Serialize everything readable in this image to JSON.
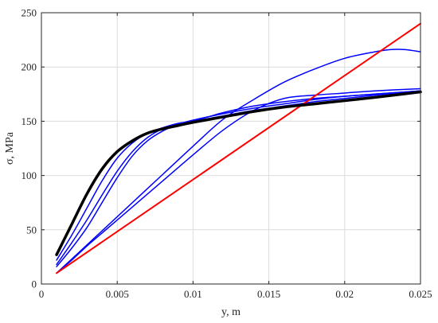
{
  "chart_data": {
    "type": "line",
    "title": "",
    "xlabel": "y, m",
    "ylabel": "σ, MPa",
    "xlim": [
      0,
      0.025
    ],
    "ylim": [
      0,
      250
    ],
    "xticks": [
      0,
      0.005,
      0.01,
      0.015,
      0.02,
      0.025
    ],
    "xtick_labels": [
      "0",
      "0.005",
      "0.01",
      "0.015",
      "0.02",
      "0.025"
    ],
    "yticks": [
      0,
      50,
      100,
      150,
      200,
      250
    ],
    "ytick_labels": [
      "0",
      "50",
      "100",
      "150",
      "200",
      "250"
    ],
    "grid": true,
    "colors": {
      "blue": "#0000ff",
      "red": "#ff0000",
      "black": "#000000"
    },
    "series": [
      {
        "color": "#0000ff",
        "width": 1.5,
        "x": [
          0.001,
          0.002,
          0.003,
          0.004,
          0.005,
          0.006,
          0.008,
          0.01,
          0.012,
          0.014,
          0.016,
          0.018,
          0.02,
          0.022,
          0.023,
          0.024,
          0.025
        ],
        "y": [
          10,
          23,
          36,
          49,
          62,
          75,
          101,
          127,
          152,
          170,
          186,
          198,
          208,
          214,
          216,
          216,
          214
        ]
      },
      {
        "color": "#0000ff",
        "width": 1.5,
        "x": [
          0.001,
          0.002,
          0.003,
          0.004,
          0.005,
          0.006,
          0.008,
          0.01,
          0.012,
          0.014,
          0.016,
          0.018,
          0.02,
          0.022,
          0.025
        ],
        "y": [
          10,
          22,
          35,
          47,
          59,
          71,
          95,
          119,
          142,
          160,
          171,
          174,
          176,
          178,
          180
        ]
      },
      {
        "color": "#0000ff",
        "width": 1.5,
        "x": [
          0.001,
          0.002,
          0.003,
          0.004,
          0.005,
          0.006,
          0.007,
          0.008,
          0.009,
          0.01,
          0.012,
          0.014,
          0.016,
          0.018,
          0.02,
          0.022,
          0.025
        ],
        "y": [
          16,
          33,
          52,
          75,
          98,
          118,
          132,
          141,
          147,
          151,
          157,
          162,
          166,
          170,
          173,
          175,
          178
        ]
      },
      {
        "color": "#0000ff",
        "width": 1.5,
        "x": [
          0.001,
          0.002,
          0.003,
          0.004,
          0.005,
          0.006,
          0.007,
          0.008,
          0.009,
          0.01,
          0.011,
          0.012,
          0.014,
          0.016,
          0.018,
          0.02,
          0.022,
          0.025
        ],
        "y": [
          18,
          38,
          59,
          82,
          104,
          122,
          135,
          143,
          147,
          150,
          154,
          158,
          164,
          168,
          171,
          173,
          175,
          178
        ]
      },
      {
        "color": "#0000ff",
        "width": 1.5,
        "x": [
          0.001,
          0.002,
          0.003,
          0.004,
          0.005,
          0.006,
          0.007,
          0.008,
          0.009,
          0.01,
          0.012,
          0.014,
          0.016,
          0.018,
          0.02,
          0.022,
          0.025
        ],
        "y": [
          22,
          45,
          70,
          95,
          116,
          130,
          139,
          144,
          148,
          150,
          155,
          160,
          164,
          168,
          171,
          174,
          178
        ]
      },
      {
        "color": "#ff0000",
        "width": 2,
        "x": [
          0.001,
          0.025
        ],
        "y": [
          10,
          240
        ]
      },
      {
        "color": "#000000",
        "width": 3.5,
        "x": [
          0.001,
          0.002,
          0.003,
          0.004,
          0.005,
          0.006,
          0.007,
          0.008,
          0.009,
          0.01,
          0.012,
          0.014,
          0.016,
          0.018,
          0.02,
          0.022,
          0.025
        ],
        "y": [
          27,
          55,
          83,
          106,
          122,
          132,
          139,
          143,
          146,
          149,
          154,
          159,
          163,
          166,
          169,
          172,
          177
        ]
      }
    ]
  }
}
